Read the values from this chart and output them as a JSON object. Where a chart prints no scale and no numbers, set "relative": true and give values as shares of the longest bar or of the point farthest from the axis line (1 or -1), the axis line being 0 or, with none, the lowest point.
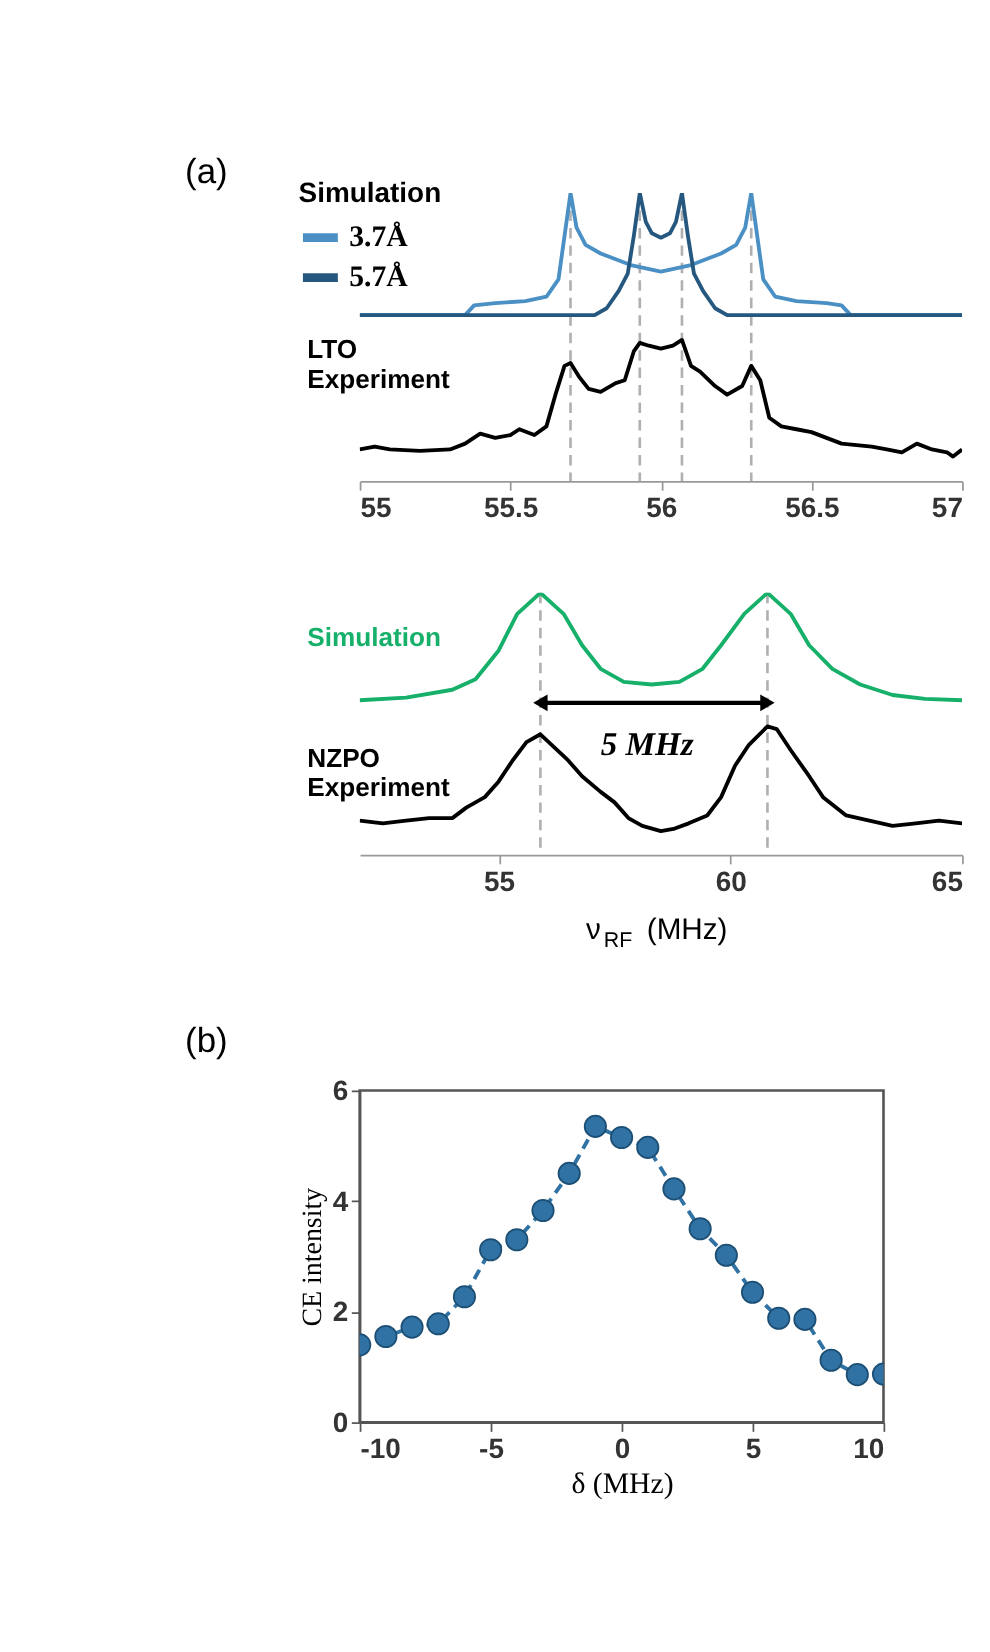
{
  "chart_data": [
    {
      "type": "line",
      "relative": true,
      "xlim": [
        55,
        57
      ],
      "xticks": [
        55,
        55.5,
        56,
        56.5,
        57
      ],
      "legend": "top left",
      "legend_title": "Simulation",
      "grid": false,
      "line_style": "solid",
      "marker": "none",
      "annotations": [
        "(a)",
        "LTO\nExperiment"
      ],
      "ref_lines": [
        {
          "axis": "x",
          "value": 55.7,
          "color": "#b0b0b0",
          "line_style": "dashed"
        },
        {
          "axis": "x",
          "value": 55.93,
          "color": "#b0b0b0",
          "line_style": "dashed"
        },
        {
          "axis": "x",
          "value": 56.07,
          "color": "#b0b0b0",
          "line_style": "dashed"
        },
        {
          "axis": "x",
          "value": 56.3,
          "color": "#b0b0b0",
          "line_style": "dashed"
        }
      ],
      "series": [
        {
          "name": "3.7Å",
          "color": "#4a90c4",
          "x": [
            55,
            55.35,
            55.38,
            55.45,
            55.55,
            55.62,
            55.66,
            55.68,
            55.7,
            55.72,
            55.75,
            55.8,
            55.9,
            56,
            56.1,
            56.2,
            56.25,
            56.28,
            56.3,
            56.32,
            56.34,
            56.38,
            56.45,
            56.55,
            56.6,
            56.63,
            57
          ],
          "values": [
            0.576,
            0.576,
            0.61,
            0.618,
            0.625,
            0.64,
            0.7,
            0.85,
            1,
            0.88,
            0.82,
            0.79,
            0.75,
            0.727,
            0.75,
            0.79,
            0.82,
            0.88,
            1,
            0.85,
            0.7,
            0.64,
            0.625,
            0.618,
            0.61,
            0.576,
            0.576
          ]
        },
        {
          "name": "5.7Å",
          "color": "#25577f",
          "x": [
            55,
            55.78,
            55.82,
            55.86,
            55.89,
            55.91,
            55.93,
            55.95,
            55.97,
            56,
            56.03,
            56.05,
            56.07,
            56.09,
            56.11,
            56.14,
            56.18,
            56.22,
            57
          ],
          "values": [
            0.576,
            0.576,
            0.6,
            0.66,
            0.72,
            0.85,
            1,
            0.9,
            0.86,
            0.845,
            0.86,
            0.9,
            1,
            0.85,
            0.72,
            0.66,
            0.6,
            0.576,
            0.576
          ]
        },
        {
          "color": "#000000",
          "x": [
            55,
            55.05,
            55.1,
            55.2,
            55.3,
            55.35,
            55.4,
            55.45,
            55.5,
            55.53,
            55.58,
            55.62,
            55.65,
            55.68,
            55.7,
            55.73,
            55.76,
            55.8,
            55.85,
            55.88,
            55.91,
            55.93,
            55.96,
            56,
            56.04,
            56.07,
            56.1,
            56.13,
            56.18,
            56.22,
            56.27,
            56.3,
            56.33,
            56.36,
            56.4,
            56.45,
            56.5,
            56.55,
            56.6,
            56.7,
            56.75,
            56.8,
            56.85,
            56.9,
            56.95,
            56.97,
            57
          ],
          "values": [
            0.11,
            0.12,
            0.11,
            0.105,
            0.11,
            0.13,
            0.165,
            0.15,
            0.16,
            0.18,
            0.16,
            0.19,
            0.3,
            0.4,
            0.41,
            0.36,
            0.32,
            0.31,
            0.34,
            0.35,
            0.45,
            0.48,
            0.47,
            0.46,
            0.47,
            0.49,
            0.4,
            0.38,
            0.33,
            0.3,
            0.33,
            0.4,
            0.35,
            0.22,
            0.19,
            0.18,
            0.17,
            0.15,
            0.13,
            0.12,
            0.11,
            0.1,
            0.13,
            0.11,
            0.1,
            0.085,
            0.11
          ]
        }
      ]
    },
    {
      "type": "line",
      "relative": true,
      "xlim": [
        52,
        65
      ],
      "xticks": [
        55,
        60,
        65
      ],
      "xlabel": "ν$_{RF}$ (MHz)",
      "grid": false,
      "line_style": "solid",
      "marker": "none",
      "annotations": [
        "5 MHz"
      ],
      "ref_lines": [
        {
          "axis": "x",
          "value": 55.9,
          "color": "#b0b0b0",
          "line_style": "dashed"
        },
        {
          "axis": "x",
          "value": 60.8,
          "color": "#b0b0b0",
          "line_style": "dashed"
        }
      ],
      "series": [
        {
          "name": "Simulation",
          "color": "#16b06a",
          "x": [
            52,
            53,
            54,
            54.5,
            55,
            55.4,
            55.9,
            56.4,
            56.8,
            57.2,
            57.7,
            58.3,
            58.9,
            59.4,
            59.8,
            60.3,
            60.8,
            61.3,
            61.7,
            62.2,
            62.8,
            63.5,
            64.2,
            65
          ],
          "values": [
            0.59,
            0.6,
            0.63,
            0.67,
            0.78,
            0.92,
            1,
            0.92,
            0.8,
            0.71,
            0.66,
            0.65,
            0.66,
            0.71,
            0.8,
            0.92,
            1,
            0.92,
            0.8,
            0.71,
            0.65,
            0.61,
            0.595,
            0.59
          ]
        },
        {
          "name": "NZPO\nExperiment",
          "color": "#000000",
          "x": [
            52,
            52.5,
            53,
            53.5,
            54,
            54.3,
            54.7,
            55,
            55.3,
            55.6,
            55.9,
            56.2,
            56.5,
            56.8,
            57.2,
            57.5,
            57.8,
            58.1,
            58.5,
            58.8,
            59.1,
            59.5,
            59.8,
            60.1,
            60.4,
            60.8,
            61,
            61.3,
            61.7,
            62,
            62.5,
            63,
            63.5,
            64,
            64.5,
            65
          ],
          "values": [
            0.13,
            0.12,
            0.13,
            0.14,
            0.14,
            0.18,
            0.22,
            0.28,
            0.36,
            0.43,
            0.46,
            0.41,
            0.36,
            0.3,
            0.24,
            0.2,
            0.14,
            0.11,
            0.09,
            0.1,
            0.12,
            0.15,
            0.22,
            0.34,
            0.42,
            0.49,
            0.48,
            0.4,
            0.3,
            0.22,
            0.15,
            0.13,
            0.11,
            0.12,
            0.13,
            0.12
          ]
        }
      ]
    },
    {
      "type": "line",
      "xlim": [
        -10,
        10
      ],
      "xticks": [
        -10,
        -5,
        0,
        5,
        10
      ],
      "ylim": [
        0,
        6
      ],
      "yticks": [
        0,
        2,
        4,
        6
      ],
      "xlabel": "δ (MHz)",
      "ylabel": "CE intensity",
      "grid": false,
      "marker": "circle",
      "line_style": "dashed",
      "annotations": [
        "(b)"
      ],
      "x": [
        -10,
        -9,
        -8,
        -7,
        -6,
        -5,
        -4,
        -3,
        -2,
        -1,
        0,
        1,
        2,
        3,
        4,
        5,
        6,
        7,
        8,
        9,
        10
      ],
      "series": [
        {
          "color": "#2f72a3",
          "values": [
            1.4,
            1.55,
            1.72,
            1.78,
            2.27,
            3.12,
            3.3,
            3.83,
            4.5,
            5.35,
            5.15,
            4.97,
            4.22,
            3.5,
            3.02,
            2.35,
            1.88,
            1.86,
            1.12,
            0.86,
            0.87
          ]
        }
      ]
    }
  ]
}
